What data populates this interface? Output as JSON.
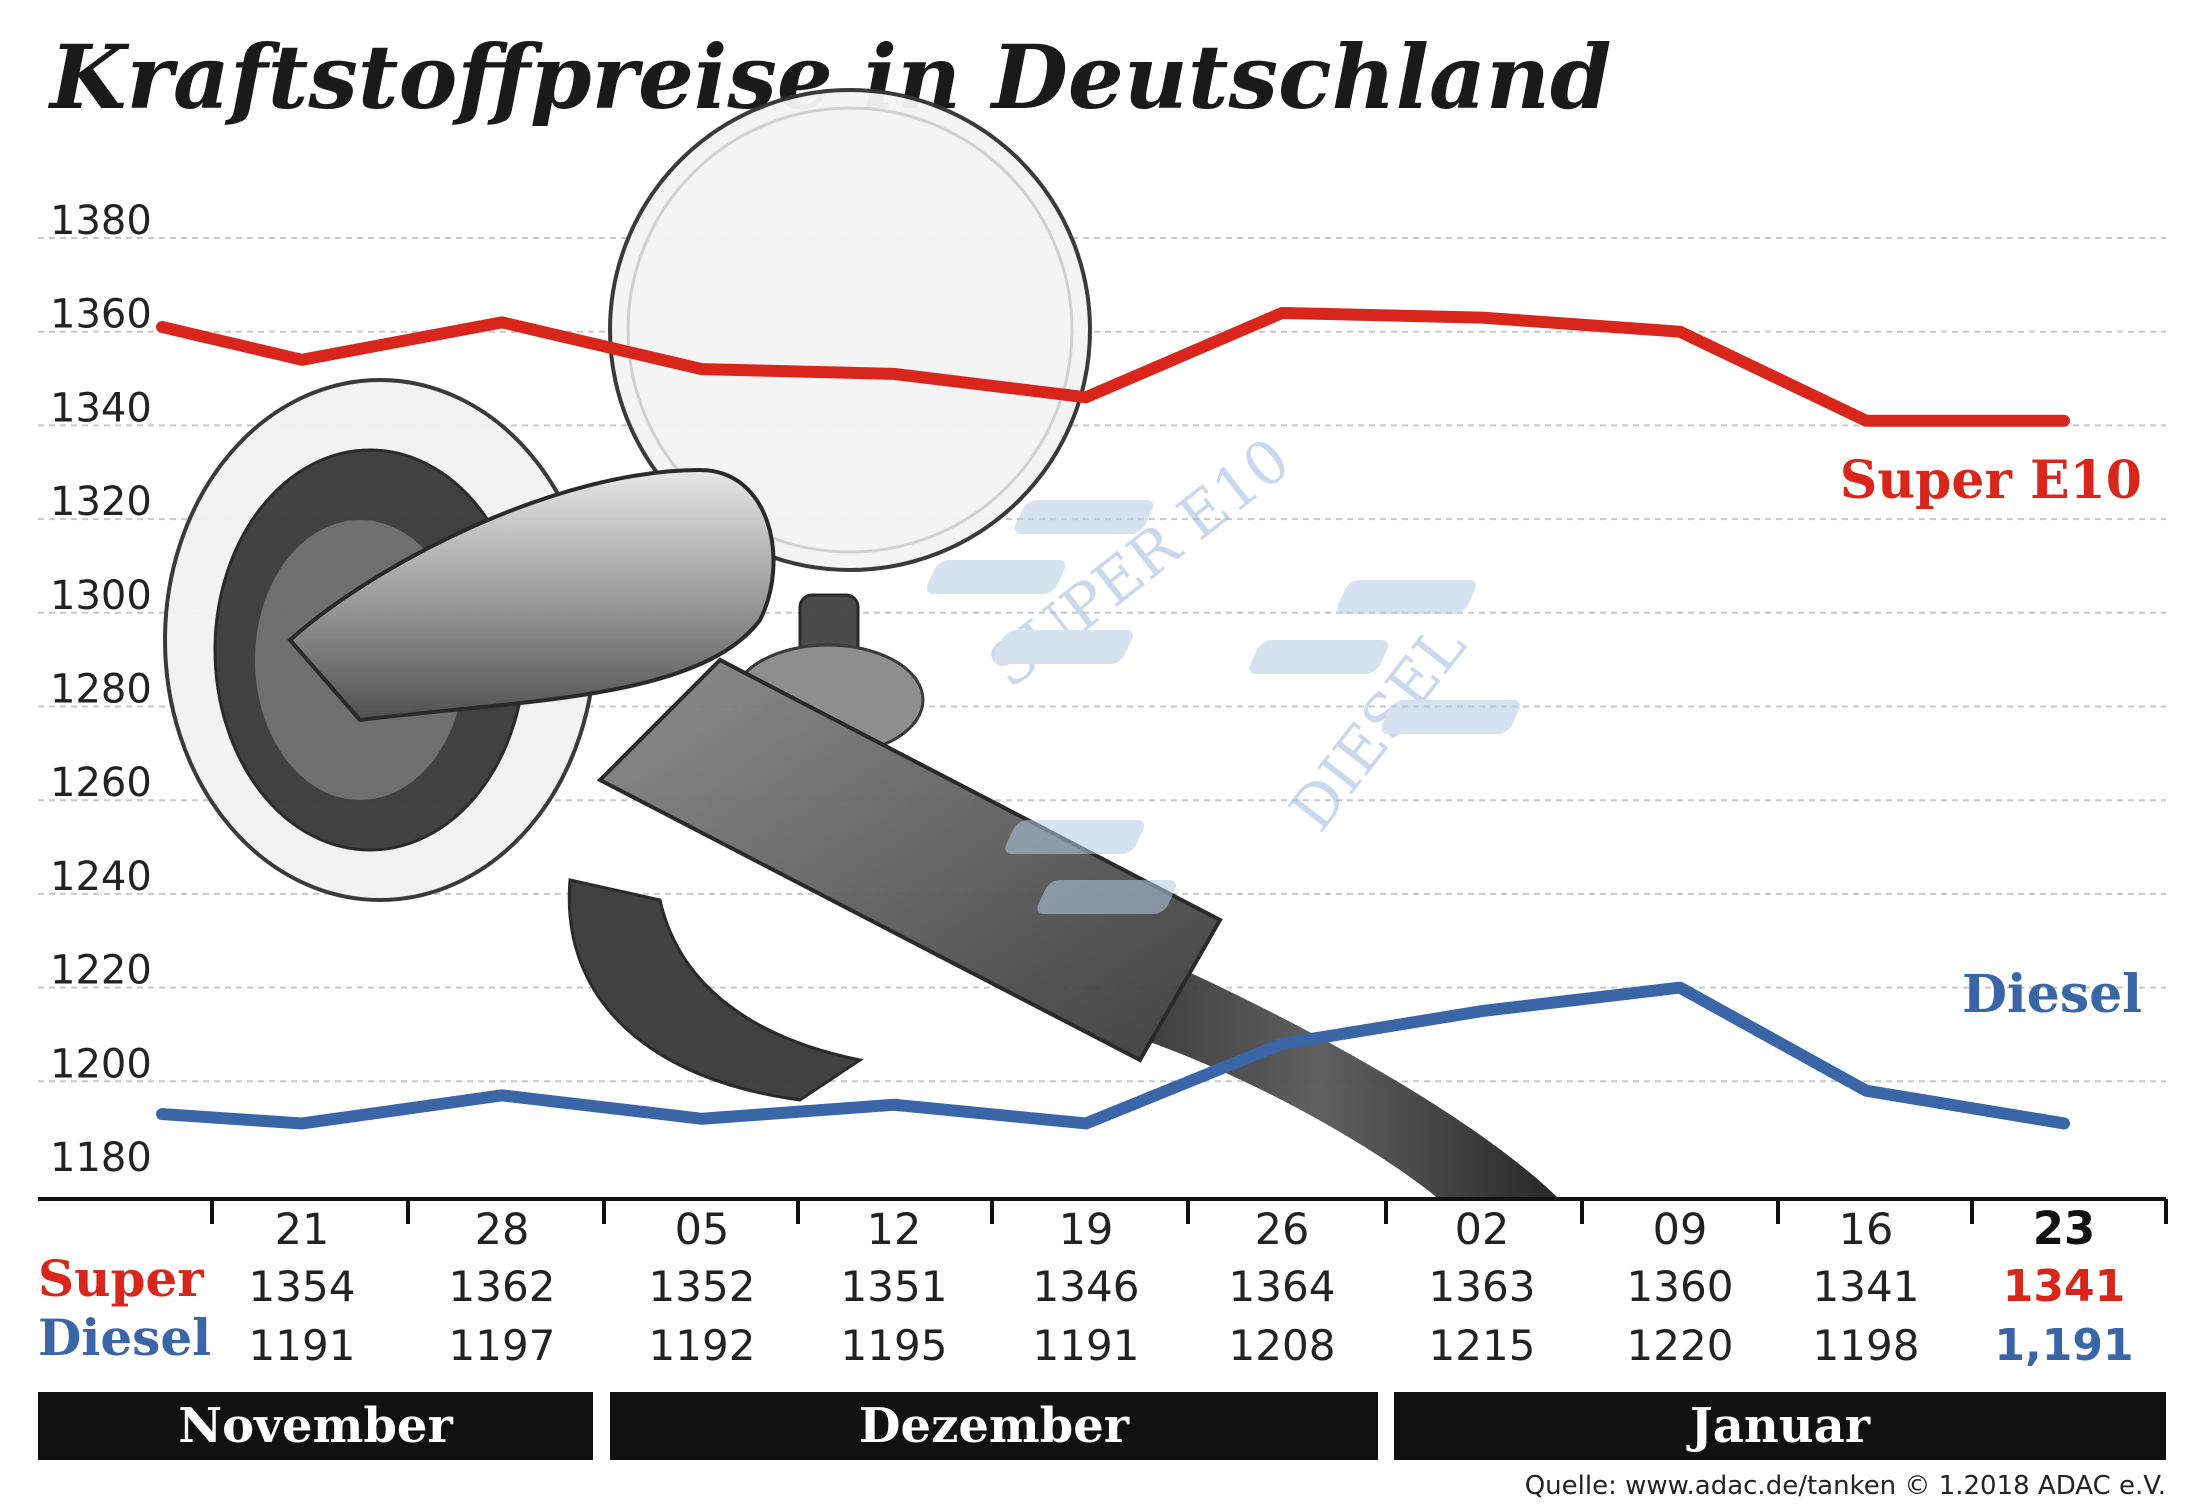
{
  "title": "Kraftstoffpreise in Deutschland",
  "colors": {
    "super": "#d9261c",
    "diesel": "#3a66a7",
    "grid": "#c8c8c8",
    "month_bar": "#111111"
  },
  "chart_data": {
    "type": "line",
    "title": "Kraftstoffpreise in Deutschland",
    "xlabel": "",
    "ylabel": "",
    "ylim": [
      1180,
      1380
    ],
    "yticks": [
      1380,
      1360,
      1340,
      1320,
      1300,
      1280,
      1260,
      1240,
      1220,
      1200,
      1180
    ],
    "grid": true,
    "categories": [
      "21",
      "28",
      "05",
      "12",
      "19",
      "26",
      "02",
      "09",
      "16",
      "23"
    ],
    "series": [
      {
        "name": "Super E10",
        "key": "super",
        "values": [
          1354,
          1362,
          1352,
          1351,
          1346,
          1364,
          1363,
          1360,
          1341,
          1341
        ],
        "start_value": 1361
      },
      {
        "name": "Diesel",
        "key": "diesel",
        "values": [
          1191,
          1197,
          1192,
          1195,
          1191,
          1208,
          1215,
          1220,
          1198,
          1191
        ],
        "start_value": 1193
      }
    ],
    "months": [
      {
        "label": "November"
      },
      {
        "label": "Dezember"
      },
      {
        "label": "Januar"
      }
    ]
  },
  "table": {
    "super_label": "Super",
    "diesel_label": "Diesel",
    "super_values": [
      "1354",
      "1362",
      "1352",
      "1351",
      "1346",
      "1364",
      "1363",
      "1360",
      "1341",
      "1341"
    ],
    "diesel_values": [
      "1191",
      "1197",
      "1192",
      "1195",
      "1191",
      "1208",
      "1215",
      "1220",
      "1198",
      "1,191"
    ]
  },
  "decoration": {
    "super_text": "SUPER E10",
    "diesel_text": "DIESEL",
    "icon": "fuel-nozzle-icon"
  },
  "source": "Quelle: www.adac.de/tanken    © 1.2018  ADAC e.V."
}
